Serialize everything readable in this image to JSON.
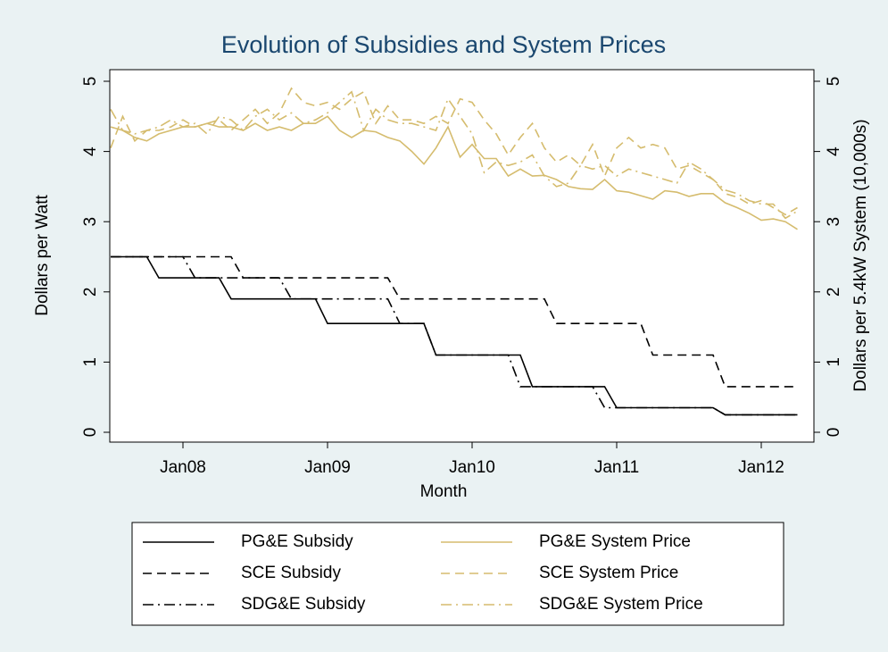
{
  "chart_data": {
    "type": "line",
    "title": "Evolution of Subsidies and System Prices",
    "xlabel": "Month",
    "ylabel": "Dollars per Watt",
    "y2label": "Dollars per 5.4kW System (10,000s)",
    "x": [
      "2007-07",
      "2007-08",
      "2007-09",
      "2007-10",
      "2007-11",
      "2007-12",
      "2008-01",
      "2008-02",
      "2008-03",
      "2008-04",
      "2008-05",
      "2008-06",
      "2008-07",
      "2008-08",
      "2008-09",
      "2008-10",
      "2008-11",
      "2008-12",
      "2009-01",
      "2009-02",
      "2009-03",
      "2009-04",
      "2009-05",
      "2009-06",
      "2009-07",
      "2009-08",
      "2009-09",
      "2009-10",
      "2009-11",
      "2009-12",
      "2010-01",
      "2010-02",
      "2010-03",
      "2010-04",
      "2010-05",
      "2010-06",
      "2010-07",
      "2010-08",
      "2010-09",
      "2010-10",
      "2010-11",
      "2010-12",
      "2011-01",
      "2011-02",
      "2011-03",
      "2011-04",
      "2011-05",
      "2011-06",
      "2011-07",
      "2011-08",
      "2011-09",
      "2011-10",
      "2011-11",
      "2011-12",
      "2012-01",
      "2012-02",
      "2012-03",
      "2012-04"
    ],
    "xlim": [
      "2007-07",
      "2012-05"
    ],
    "xticks": [
      {
        "value": "2008-01",
        "label": "Jan08"
      },
      {
        "value": "2009-01",
        "label": "Jan09"
      },
      {
        "value": "2010-01",
        "label": "Jan10"
      },
      {
        "value": "2011-01",
        "label": "Jan11"
      },
      {
        "value": "2012-01",
        "label": "Jan12"
      }
    ],
    "ylim": [
      0,
      5
    ],
    "yticks": [
      0,
      1,
      2,
      3,
      4,
      5
    ],
    "y2lim": [
      0,
      5
    ],
    "y2ticks": [
      0,
      1,
      2,
      3,
      4,
      5
    ],
    "legend": "bottom",
    "series": [
      {
        "name": "PG&E Subsidy",
        "color": "#000000",
        "dash": "solid",
        "axis": "y",
        "values": [
          2.5,
          2.5,
          2.5,
          2.5,
          2.2,
          2.2,
          2.2,
          2.2,
          2.2,
          2.2,
          1.9,
          1.9,
          1.9,
          1.9,
          1.9,
          1.9,
          1.9,
          1.9,
          1.55,
          1.55,
          1.55,
          1.55,
          1.55,
          1.55,
          1.55,
          1.55,
          1.55,
          1.1,
          1.1,
          1.1,
          1.1,
          1.1,
          1.1,
          1.1,
          1.1,
          0.65,
          0.65,
          0.65,
          0.65,
          0.65,
          0.65,
          0.65,
          0.35,
          0.35,
          0.35,
          0.35,
          0.35,
          0.35,
          0.35,
          0.35,
          0.35,
          0.25,
          0.25,
          0.25,
          0.25,
          0.25,
          0.25,
          0.25
        ]
      },
      {
        "name": "SCE Subsidy",
        "color": "#000000",
        "dash": "dashed",
        "axis": "y",
        "values": [
          2.5,
          2.5,
          2.5,
          2.5,
          2.5,
          2.5,
          2.5,
          2.5,
          2.5,
          2.5,
          2.5,
          2.2,
          2.2,
          2.2,
          2.2,
          2.2,
          2.2,
          2.2,
          2.2,
          2.2,
          2.2,
          2.2,
          2.2,
          2.2,
          1.9,
          1.9,
          1.9,
          1.9,
          1.9,
          1.9,
          1.9,
          1.9,
          1.9,
          1.9,
          1.9,
          1.9,
          1.9,
          1.55,
          1.55,
          1.55,
          1.55,
          1.55,
          1.55,
          1.55,
          1.55,
          1.1,
          1.1,
          1.1,
          1.1,
          1.1,
          1.1,
          0.65,
          0.65,
          0.65,
          0.65,
          0.65,
          0.65,
          0.65
        ]
      },
      {
        "name": "SDG&E Subsidy",
        "color": "#000000",
        "dash": "dashdot",
        "axis": "y",
        "values": [
          2.5,
          2.5,
          2.5,
          2.5,
          2.5,
          2.5,
          2.5,
          2.2,
          2.2,
          2.2,
          2.2,
          2.2,
          2.2,
          2.2,
          2.2,
          1.9,
          1.9,
          1.9,
          1.9,
          1.9,
          1.9,
          1.9,
          1.9,
          1.9,
          1.55,
          1.55,
          1.55,
          1.1,
          1.1,
          1.1,
          1.1,
          1.1,
          1.1,
          1.1,
          0.65,
          0.65,
          0.65,
          0.65,
          0.65,
          0.65,
          0.65,
          0.35,
          0.35,
          0.35,
          0.35,
          0.35,
          0.35,
          0.35,
          0.35,
          0.35,
          0.35,
          0.25,
          0.25,
          0.25,
          0.25,
          0.25,
          0.25,
          0.25
        ]
      },
      {
        "name": "PG&E System Price",
        "color": "#d5bc6e",
        "dash": "solid",
        "axis": "y2",
        "values": [
          4.35,
          4.3,
          4.2,
          4.15,
          4.25,
          4.3,
          4.35,
          4.35,
          4.4,
          4.35,
          4.35,
          4.3,
          4.4,
          4.3,
          4.35,
          4.3,
          4.4,
          4.4,
          4.5,
          4.3,
          4.2,
          4.3,
          4.28,
          4.2,
          4.15,
          4.0,
          3.82,
          4.05,
          4.35,
          3.92,
          4.1,
          3.9,
          3.9,
          3.65,
          3.75,
          3.65,
          3.66,
          3.6,
          3.5,
          3.47,
          3.46,
          3.6,
          3.44,
          3.42,
          3.37,
          3.32,
          3.44,
          3.42,
          3.36,
          3.4,
          3.4,
          3.27,
          3.2,
          3.12,
          3.02,
          3.04,
          3.0,
          2.89
        ]
      },
      {
        "name": "SCE System Price",
        "color": "#d5bc6e",
        "dash": "dashed",
        "axis": "y2",
        "values": [
          4.05,
          4.5,
          4.15,
          4.3,
          4.3,
          4.35,
          4.45,
          4.35,
          4.4,
          4.45,
          4.3,
          4.45,
          4.6,
          4.4,
          4.55,
          4.9,
          4.7,
          4.65,
          4.7,
          4.6,
          4.75,
          4.85,
          4.4,
          4.65,
          4.45,
          4.45,
          4.4,
          4.5,
          4.4,
          4.75,
          4.7,
          4.45,
          4.25,
          3.95,
          4.2,
          4.4,
          4.05,
          3.85,
          3.95,
          3.8,
          4.1,
          3.65,
          4.05,
          4.2,
          4.05,
          4.1,
          4.05,
          3.75,
          3.8,
          3.7,
          3.6,
          3.4,
          3.35,
          3.25,
          3.3,
          3.2,
          3.1,
          3.2
        ]
      },
      {
        "name": "SDG&E System Price",
        "color": "#d5bc6e",
        "dash": "dashdot",
        "axis": "y2",
        "values": [
          4.6,
          4.3,
          4.25,
          4.3,
          4.35,
          4.45,
          4.35,
          4.4,
          4.25,
          4.5,
          4.45,
          4.3,
          4.5,
          4.6,
          4.45,
          4.55,
          4.4,
          4.45,
          4.55,
          4.7,
          4.85,
          4.3,
          4.6,
          4.45,
          4.4,
          4.4,
          4.35,
          4.3,
          4.75,
          4.5,
          4.25,
          3.7,
          3.85,
          3.8,
          3.85,
          3.95,
          3.65,
          3.5,
          3.55,
          3.8,
          3.75,
          3.8,
          3.65,
          3.75,
          3.7,
          3.65,
          3.6,
          3.55,
          3.85,
          3.75,
          3.6,
          3.45,
          3.4,
          3.3,
          3.25,
          3.25,
          3.05,
          3.15
        ]
      }
    ]
  }
}
